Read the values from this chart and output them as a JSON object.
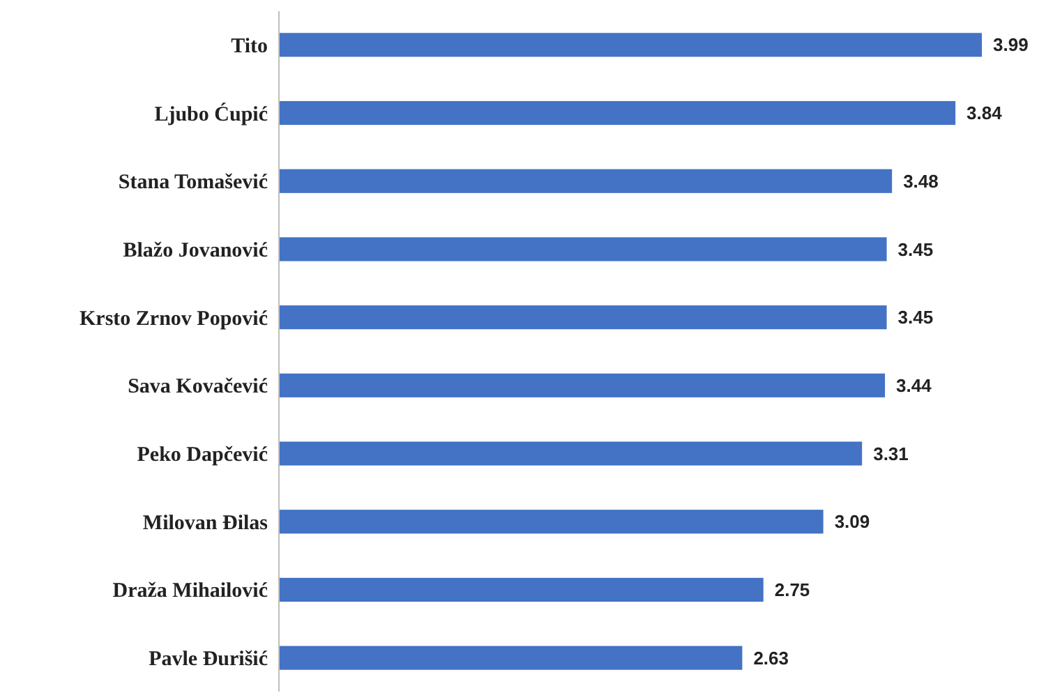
{
  "chart_data": {
    "type": "bar",
    "orientation": "horizontal",
    "categories": [
      "Tito",
      "Ljubo Ćupić",
      "Stana Tomašević",
      "Blažo Jovanović",
      "Krsto Zrnov Popović",
      "Sava Kovačević",
      "Peko Dapčević",
      "Milovan Đilas",
      "Draža Mihailović",
      "Pavle Đurišić"
    ],
    "values": [
      3.99,
      3.84,
      3.48,
      3.45,
      3.45,
      3.44,
      3.31,
      3.09,
      2.75,
      2.63
    ],
    "color": "#4472c4",
    "data_labels": true
  }
}
